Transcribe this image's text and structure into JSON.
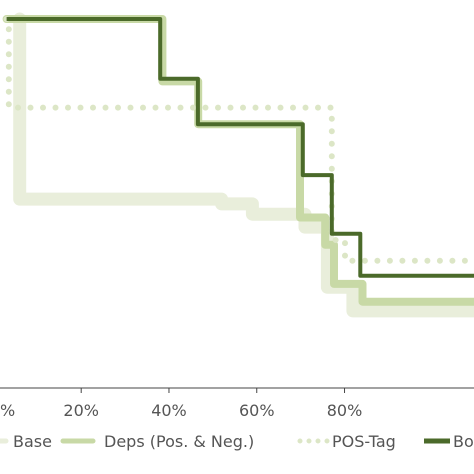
{
  "chart_data": {
    "type": "line",
    "step": true,
    "xlim": [
      -0.185,
      0.895
    ],
    "ylim": [
      0.0,
      1.0
    ],
    "x_ticks": [
      {
        "value": -0.2,
        "label": "%"
      },
      {
        "value": 0.0,
        "label": "20%"
      },
      {
        "value": 0.2,
        "label": "40%"
      },
      {
        "value": 0.4,
        "label": "60%"
      },
      {
        "value": 0.6,
        "label": "80%"
      }
    ],
    "legend_placement": "bottom",
    "series": [
      {
        "name": "Base",
        "style": "solid",
        "color": "#e9eedb",
        "x": [
          -0.14,
          -0.14,
          0.32,
          0.32,
          0.39,
          0.39,
          0.51,
          0.51,
          0.561,
          0.561,
          0.619,
          0.619,
          0.895
        ],
        "y": [
          1.0,
          0.512,
          0.512,
          0.499,
          0.499,
          0.471,
          0.471,
          0.436,
          0.436,
          0.273,
          0.273,
          0.209,
          0.209
        ]
      },
      {
        "name": "Deps (Pos. & Neg.)",
        "style": "solid",
        "color": "#c8d9a6",
        "x": [
          -0.17,
          0.185,
          0.185,
          0.2665,
          0.2665,
          0.4985,
          0.4985,
          0.556,
          0.556,
          0.576,
          0.576,
          0.641,
          0.641,
          0.895
        ],
        "y": [
          1.0,
          1.0,
          0.831,
          0.831,
          0.715,
          0.715,
          0.462,
          0.462,
          0.388,
          0.388,
          0.282,
          0.282,
          0.234,
          0.234
        ]
      },
      {
        "name": "POS-Tag",
        "style": "dotted",
        "color": "#dce6c6",
        "x": [
          -0.17,
          -0.165,
          -0.165,
          0.571,
          0.571,
          0.601,
          0.601,
          0.895
        ],
        "y": [
          1.0,
          1.0,
          0.76,
          0.76,
          0.401,
          0.401,
          0.345,
          0.345
        ]
      },
      {
        "name": "Bo",
        "style": "solid",
        "color": "#4b6a2a",
        "x": [
          -0.17,
          0.18,
          0.18,
          0.266,
          0.266,
          0.505,
          0.505,
          0.571,
          0.571,
          0.636,
          0.636,
          0.895
        ],
        "y": [
          1.0,
          1.0,
          0.838,
          0.838,
          0.715,
          0.715,
          0.577,
          0.577,
          0.418,
          0.418,
          0.304,
          0.304
        ]
      }
    ]
  }
}
